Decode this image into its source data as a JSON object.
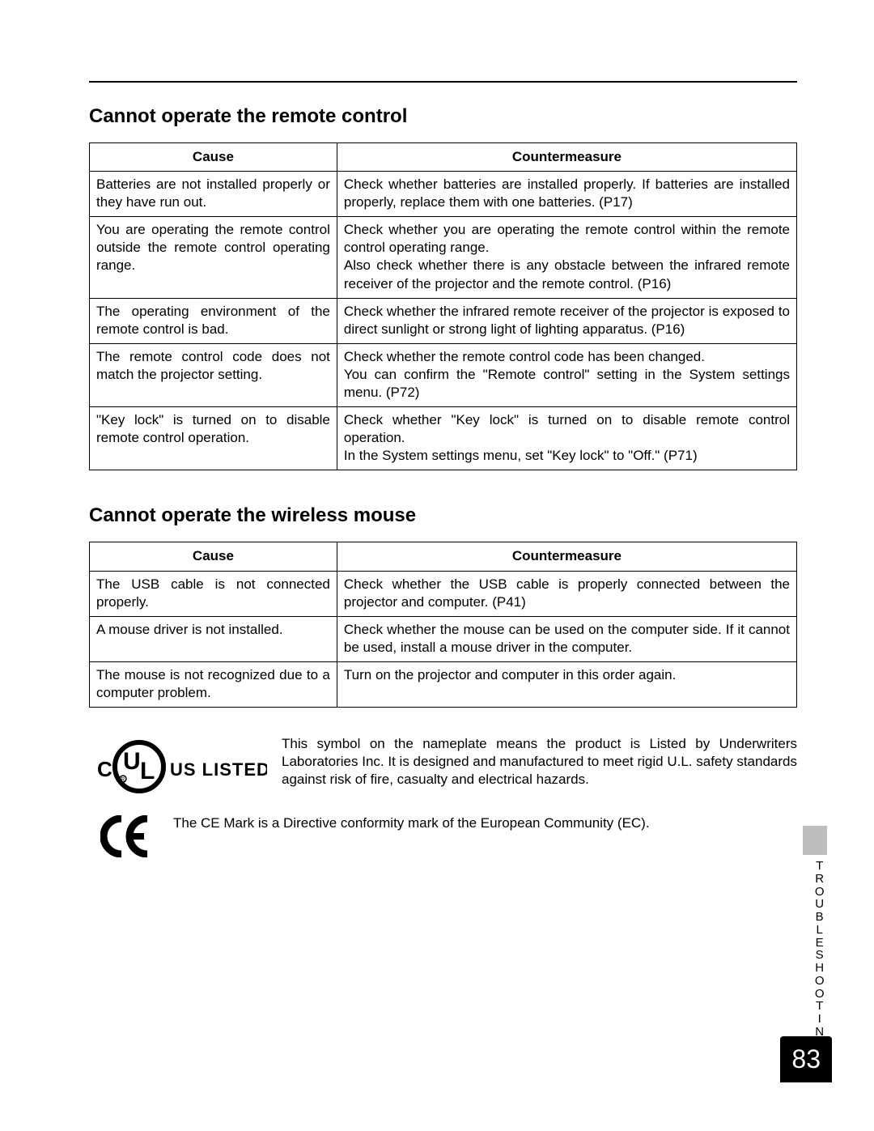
{
  "section_tab_label": "TROUBLESHOOTING",
  "page_number": "83",
  "section1": {
    "heading": "Cannot operate the remote control",
    "col_cause": "Cause",
    "col_cm": "Countermeasure",
    "rows": [
      {
        "cause": "Batteries are not installed properly or they have run out.",
        "cm": "Check whether batteries are installed properly. If batteries are installed properly, replace them with one batteries. (P17)"
      },
      {
        "cause": "You are operating the remote control outside the remote control operating range.",
        "cm": "Check whether you are operating the remote control within the remote control operating range.\nAlso check whether there is any obstacle between the infrared remote receiver of the projector and the remote control. (P16)"
      },
      {
        "cause": "The operating environment of the remote control is bad.",
        "cm": "Check whether the infrared remote receiver of the projector is exposed to direct sunlight or strong light of lighting apparatus. (P16)"
      },
      {
        "cause": "The remote control code does not match the projector setting.",
        "cm": "Check whether the remote control code has been changed.\nYou can confirm the \"Remote control\" setting in the System settings menu. (P72)"
      },
      {
        "cause": "\"Key lock\" is turned on to disable remote control operation.",
        "cm": "Check whether \"Key lock\" is turned on to disable remote control operation.\nIn the System settings menu, set \"Key lock\" to \"Off.\" (P71)"
      }
    ]
  },
  "section2": {
    "heading": "Cannot operate the wireless mouse",
    "col_cause": "Cause",
    "col_cm": "Countermeasure",
    "rows": [
      {
        "cause": "The USB cable is not connected properly.",
        "cm": "Check whether the USB cable is properly connected between the projector and computer. (P41)"
      },
      {
        "cause": "A mouse driver is not installed.",
        "cm": "Check whether the mouse can be used on the computer side. If it cannot be used, install a mouse driver in the computer."
      },
      {
        "cause": "The mouse is not recognized due to a computer problem.",
        "cm": "Turn on the projector and computer in this order again."
      }
    ]
  },
  "ul_text": "This symbol on the nameplate means the product is Listed by Underwriters Laboratories Inc.  It is designed and manufactured to meet rigid U.L. safety standards against risk of fire, casualty and electrical hazards.",
  "ul_listed_label": "US LISTED",
  "ce_text": "The CE Mark is a Directive conformity mark of the European Community (EC)."
}
